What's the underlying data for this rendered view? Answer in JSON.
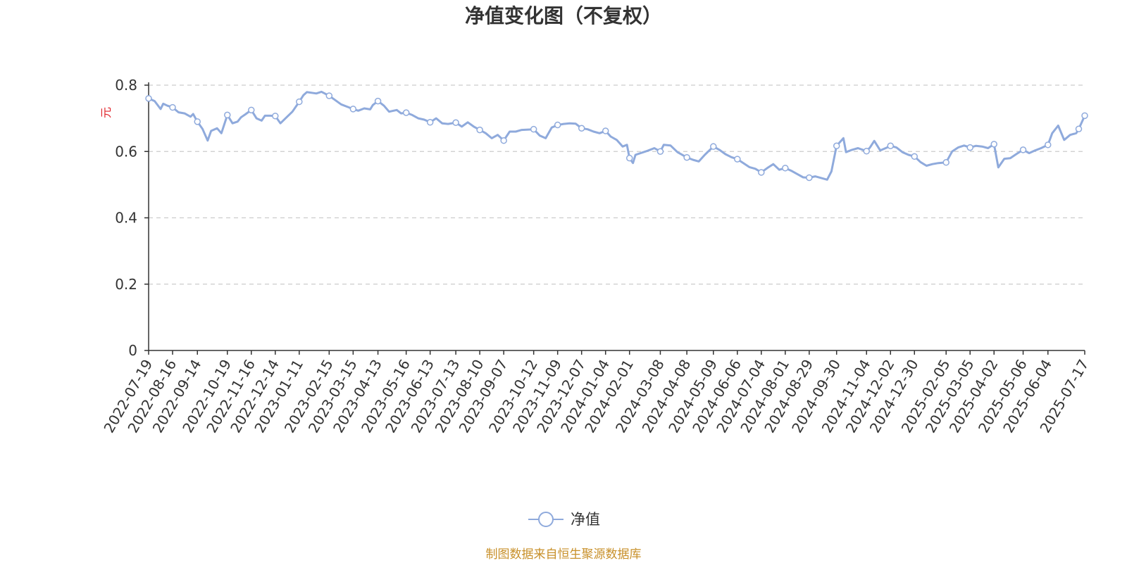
{
  "chart_data": {
    "type": "line",
    "title": "净值变化图（不复权）",
    "ylabel": "元",
    "ylim": [
      0,
      0.8
    ],
    "yticks": [
      "0",
      "0.2",
      "0.4",
      "0.6",
      "0.8"
    ],
    "ytick_values": [
      0,
      0.2,
      0.4,
      0.6,
      0.8
    ],
    "grid": true,
    "legend_placement": "bottom-center",
    "x_start": "2022-07-19",
    "x_end": "2025-07-17",
    "xticks": [
      "2022-07-19",
      "2022-08-16",
      "2022-09-14",
      "2022-10-19",
      "2022-11-16",
      "2022-12-14",
      "2023-01-11",
      "2023-02-15",
      "2023-03-15",
      "2023-04-13",
      "2023-05-16",
      "2023-06-13",
      "2023-07-13",
      "2023-08-10",
      "2023-09-07",
      "2023-10-12",
      "2023-11-09",
      "2023-12-07",
      "2024-01-04",
      "2024-02-01",
      "2024-03-08",
      "2024-04-08",
      "2024-05-09",
      "2024-06-06",
      "2024-07-04",
      "2024-08-01",
      "2024-08-29",
      "2024-09-30",
      "2024-11-04",
      "2024-12-02",
      "2024-12-30",
      "2025-02-05",
      "2025-03-05",
      "2025-04-02",
      "2025-05-06",
      "2025-06-04",
      "2025-07-17"
    ],
    "series": [
      {
        "name": "净值",
        "color": "#8faadc",
        "points": [
          [
            "2022-07-19",
            0.76
          ],
          [
            "2022-07-26",
            0.752
          ],
          [
            "2022-08-02",
            0.728
          ],
          [
            "2022-08-05",
            0.744
          ],
          [
            "2022-08-10",
            0.738
          ],
          [
            "2022-08-16",
            0.733
          ],
          [
            "2022-08-23",
            0.718
          ],
          [
            "2022-08-30",
            0.715
          ],
          [
            "2022-09-06",
            0.705
          ],
          [
            "2022-09-09",
            0.713
          ],
          [
            "2022-09-14",
            0.69
          ],
          [
            "2022-09-20",
            0.668
          ],
          [
            "2022-09-26",
            0.633
          ],
          [
            "2022-09-30",
            0.662
          ],
          [
            "2022-10-07",
            0.67
          ],
          [
            "2022-10-12",
            0.655
          ],
          [
            "2022-10-19",
            0.71
          ],
          [
            "2022-10-25",
            0.685
          ],
          [
            "2022-10-31",
            0.69
          ],
          [
            "2022-11-04",
            0.703
          ],
          [
            "2022-11-09",
            0.712
          ],
          [
            "2022-11-16",
            0.725
          ],
          [
            "2022-11-22",
            0.7
          ],
          [
            "2022-11-28",
            0.693
          ],
          [
            "2022-12-02",
            0.708
          ],
          [
            "2022-12-08",
            0.708
          ],
          [
            "2022-12-14",
            0.707
          ],
          [
            "2022-12-20",
            0.685
          ],
          [
            "2022-12-26",
            0.7
          ],
          [
            "2023-01-03",
            0.72
          ],
          [
            "2023-01-11",
            0.75
          ],
          [
            "2023-01-16",
            0.77
          ],
          [
            "2023-01-20",
            0.779
          ],
          [
            "2023-01-31",
            0.775
          ],
          [
            "2023-02-06",
            0.78
          ],
          [
            "2023-02-15",
            0.768
          ],
          [
            "2023-02-21",
            0.757
          ],
          [
            "2023-03-01",
            0.742
          ],
          [
            "2023-03-08",
            0.735
          ],
          [
            "2023-03-15",
            0.728
          ],
          [
            "2023-03-21",
            0.723
          ],
          [
            "2023-03-28",
            0.73
          ],
          [
            "2023-04-04",
            0.727
          ],
          [
            "2023-04-07",
            0.74
          ],
          [
            "2023-04-13",
            0.752
          ],
          [
            "2023-04-20",
            0.738
          ],
          [
            "2023-04-26",
            0.72
          ],
          [
            "2023-05-05",
            0.725
          ],
          [
            "2023-05-10",
            0.715
          ],
          [
            "2023-05-16",
            0.717
          ],
          [
            "2023-05-23",
            0.71
          ],
          [
            "2023-05-30",
            0.7
          ],
          [
            "2023-06-06",
            0.696
          ],
          [
            "2023-06-13",
            0.688
          ],
          [
            "2023-06-20",
            0.7
          ],
          [
            "2023-06-27",
            0.685
          ],
          [
            "2023-07-04",
            0.683
          ],
          [
            "2023-07-13",
            0.687
          ],
          [
            "2023-07-20",
            0.675
          ],
          [
            "2023-07-27",
            0.688
          ],
          [
            "2023-08-03",
            0.675
          ],
          [
            "2023-08-10",
            0.665
          ],
          [
            "2023-08-17",
            0.655
          ],
          [
            "2023-08-24",
            0.64
          ],
          [
            "2023-08-31",
            0.65
          ],
          [
            "2023-09-07",
            0.633
          ],
          [
            "2023-09-14",
            0.66
          ],
          [
            "2023-09-21",
            0.66
          ],
          [
            "2023-09-28",
            0.665
          ],
          [
            "2023-10-12",
            0.667
          ],
          [
            "2023-10-19",
            0.648
          ],
          [
            "2023-10-26",
            0.64
          ],
          [
            "2023-11-02",
            0.672
          ],
          [
            "2023-11-09",
            0.68
          ],
          [
            "2023-11-16",
            0.683
          ],
          [
            "2023-11-23",
            0.685
          ],
          [
            "2023-11-30",
            0.684
          ],
          [
            "2023-12-07",
            0.67
          ],
          [
            "2023-12-14",
            0.667
          ],
          [
            "2023-12-21",
            0.66
          ],
          [
            "2023-12-28",
            0.655
          ],
          [
            "2024-01-04",
            0.662
          ],
          [
            "2024-01-10",
            0.645
          ],
          [
            "2024-01-17",
            0.635
          ],
          [
            "2024-01-24",
            0.615
          ],
          [
            "2024-01-29",
            0.62
          ],
          [
            "2024-02-01",
            0.58
          ],
          [
            "2024-02-05",
            0.565
          ],
          [
            "2024-02-08",
            0.59
          ],
          [
            "2024-02-22",
            0.602
          ],
          [
            "2024-03-01",
            0.61
          ],
          [
            "2024-03-08",
            0.6
          ],
          [
            "2024-03-12",
            0.62
          ],
          [
            "2024-03-20",
            0.618
          ],
          [
            "2024-03-28",
            0.598
          ],
          [
            "2024-04-08",
            0.582
          ],
          [
            "2024-04-15",
            0.575
          ],
          [
            "2024-04-22",
            0.57
          ],
          [
            "2024-04-29",
            0.59
          ],
          [
            "2024-05-09",
            0.615
          ],
          [
            "2024-05-16",
            0.605
          ],
          [
            "2024-05-23",
            0.592
          ],
          [
            "2024-05-30",
            0.583
          ],
          [
            "2024-06-06",
            0.577
          ],
          [
            "2024-06-13",
            0.565
          ],
          [
            "2024-06-20",
            0.553
          ],
          [
            "2024-06-27",
            0.548
          ],
          [
            "2024-07-04",
            0.537
          ],
          [
            "2024-07-11",
            0.55
          ],
          [
            "2024-07-18",
            0.562
          ],
          [
            "2024-07-25",
            0.545
          ],
          [
            "2024-08-01",
            0.55
          ],
          [
            "2024-08-08",
            0.542
          ],
          [
            "2024-08-15",
            0.532
          ],
          [
            "2024-08-22",
            0.522
          ],
          [
            "2024-08-29",
            0.521
          ],
          [
            "2024-09-05",
            0.525
          ],
          [
            "2024-09-12",
            0.52
          ],
          [
            "2024-09-19",
            0.515
          ],
          [
            "2024-09-24",
            0.54
          ],
          [
            "2024-09-30",
            0.617
          ],
          [
            "2024-10-08",
            0.64
          ],
          [
            "2024-10-11",
            0.598
          ],
          [
            "2024-10-18",
            0.605
          ],
          [
            "2024-10-25",
            0.61
          ],
          [
            "2024-11-04",
            0.601
          ],
          [
            "2024-11-08",
            0.612
          ],
          [
            "2024-11-13",
            0.632
          ],
          [
            "2024-11-20",
            0.603
          ],
          [
            "2024-11-27",
            0.611
          ],
          [
            "2024-12-02",
            0.617
          ],
          [
            "2024-12-09",
            0.612
          ],
          [
            "2024-12-16",
            0.598
          ],
          [
            "2024-12-23",
            0.59
          ],
          [
            "2024-12-30",
            0.585
          ],
          [
            "2025-01-06",
            0.568
          ],
          [
            "2025-01-13",
            0.557
          ],
          [
            "2025-01-20",
            0.562
          ],
          [
            "2025-01-27",
            0.565
          ],
          [
            "2025-02-05",
            0.567
          ],
          [
            "2025-02-12",
            0.6
          ],
          [
            "2025-02-19",
            0.612
          ],
          [
            "2025-02-26",
            0.618
          ],
          [
            "2025-03-05",
            0.612
          ],
          [
            "2025-03-12",
            0.617
          ],
          [
            "2025-03-19",
            0.615
          ],
          [
            "2025-03-26",
            0.61
          ],
          [
            "2025-04-02",
            0.622
          ],
          [
            "2025-04-07",
            0.552
          ],
          [
            "2025-04-14",
            0.578
          ],
          [
            "2025-04-21",
            0.58
          ],
          [
            "2025-04-28",
            0.592
          ],
          [
            "2025-05-06",
            0.605
          ],
          [
            "2025-05-13",
            0.595
          ],
          [
            "2025-05-20",
            0.603
          ],
          [
            "2025-05-27",
            0.61
          ],
          [
            "2025-06-04",
            0.62
          ],
          [
            "2025-06-09",
            0.655
          ],
          [
            "2025-06-16",
            0.678
          ],
          [
            "2025-06-23",
            0.635
          ],
          [
            "2025-06-30",
            0.65
          ],
          [
            "2025-07-07",
            0.655
          ],
          [
            "2025-07-10",
            0.668
          ],
          [
            "2025-07-17",
            0.708
          ]
        ],
        "marker_dates": [
          "2022-07-19",
          "2022-08-16",
          "2022-09-14",
          "2022-10-19",
          "2022-11-16",
          "2022-12-14",
          "2023-01-11",
          "2023-02-15",
          "2023-03-15",
          "2023-04-13",
          "2023-05-16",
          "2023-06-13",
          "2023-07-13",
          "2023-08-10",
          "2023-09-07",
          "2023-10-12",
          "2023-11-09",
          "2023-12-07",
          "2024-01-04",
          "2024-02-01",
          "2024-03-08",
          "2024-04-08",
          "2024-05-09",
          "2024-06-06",
          "2024-07-04",
          "2024-08-01",
          "2024-08-29",
          "2024-09-30",
          "2024-11-04",
          "2024-12-02",
          "2024-12-30",
          "2025-02-05",
          "2025-03-05",
          "2025-04-02",
          "2025-05-06",
          "2025-06-04",
          "2025-07-10",
          "2025-07-17"
        ]
      }
    ]
  },
  "legend": {
    "label": "净值"
  },
  "footer": {
    "source": "制图数据来自恒生聚源数据库"
  },
  "colors": {
    "line": "#8faadc",
    "axis": "#333333",
    "grid": "#cccccc",
    "unit": "#e0232a",
    "source": "#c8902a"
  }
}
